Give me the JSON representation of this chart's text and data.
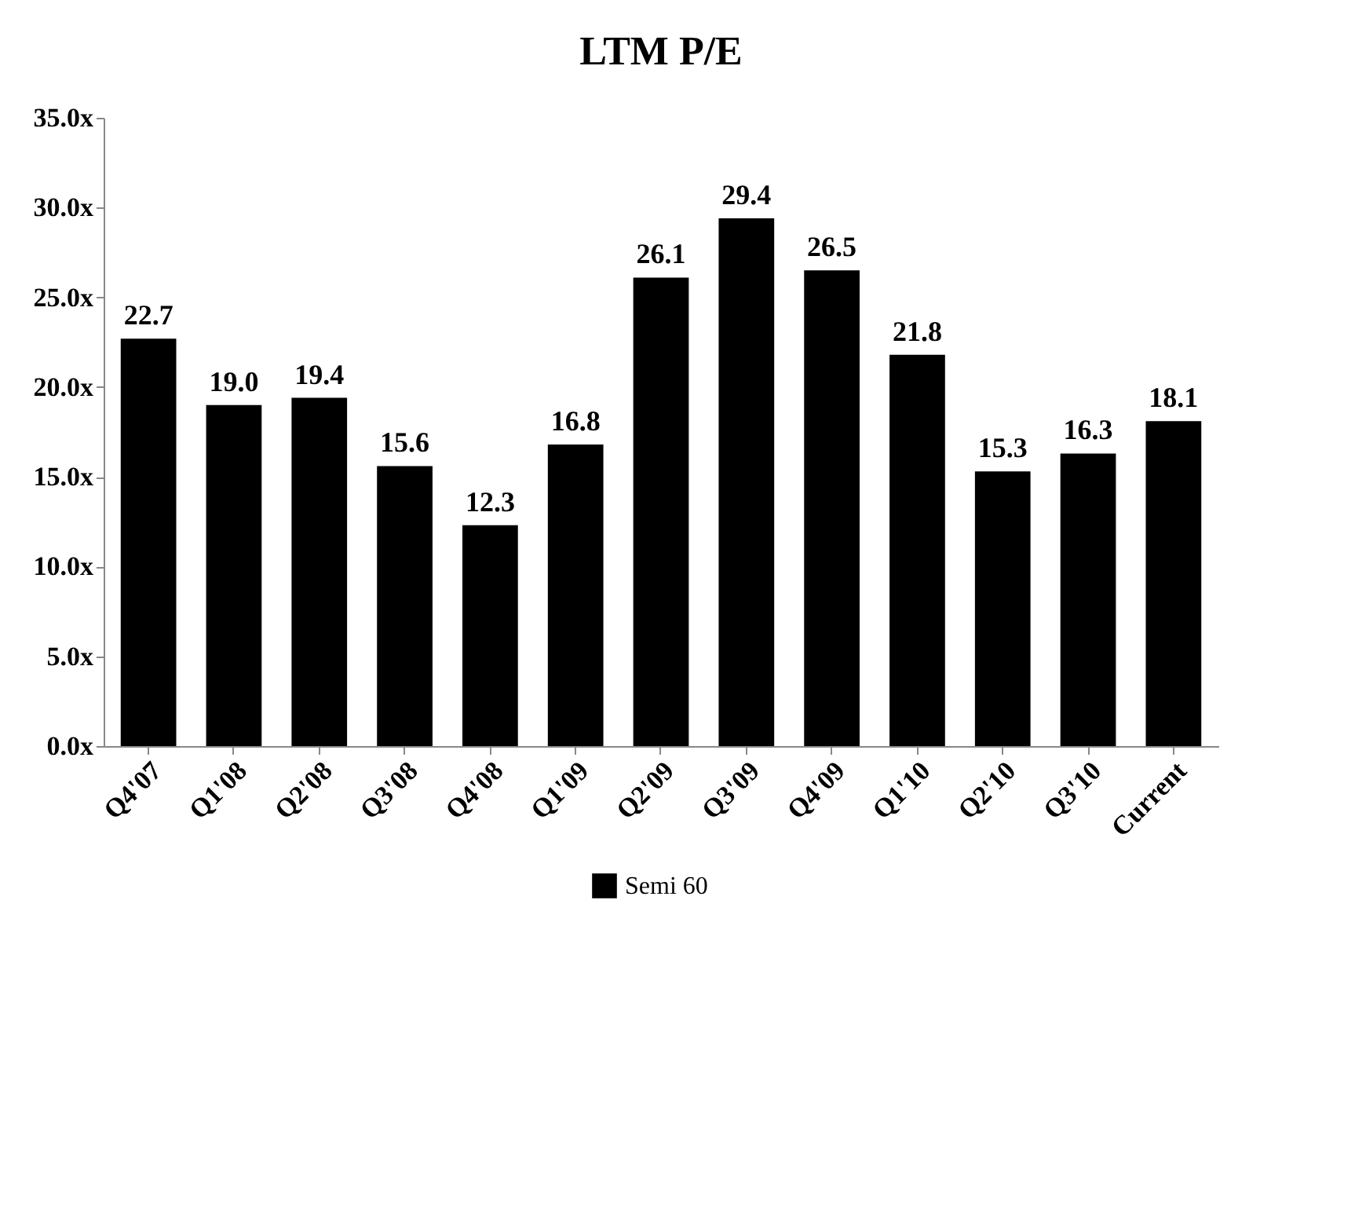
{
  "chart_data": {
    "type": "bar",
    "title": "LTM P/E",
    "categories": [
      "Q4'07",
      "Q1'08",
      "Q2'08",
      "Q3'08",
      "Q4'08",
      "Q1'09",
      "Q2'09",
      "Q3'09",
      "Q4'09",
      "Q1'10",
      "Q2'10",
      "Q3'10",
      "Current"
    ],
    "series": [
      {
        "name": "Semi 60",
        "color": "#000000",
        "values": [
          22.7,
          19.0,
          19.4,
          15.6,
          12.3,
          16.8,
          26.1,
          29.4,
          26.5,
          21.8,
          15.3,
          16.3,
          18.1
        ]
      }
    ],
    "ylim": [
      0,
      35
    ],
    "yticks": [
      {
        "value": 0,
        "label": "0.0x"
      },
      {
        "value": 5,
        "label": "5.0x"
      },
      {
        "value": 10,
        "label": "10.0x"
      },
      {
        "value": 15,
        "label": "15.0x"
      },
      {
        "value": 20,
        "label": "20.0x"
      },
      {
        "value": 25,
        "label": "25.0x"
      },
      {
        "value": 30,
        "label": "30.0x"
      },
      {
        "value": 35,
        "label": "35.0x"
      }
    ],
    "value_labels": [
      "22.7",
      "19.0",
      "19.4",
      "15.6",
      "12.3",
      "16.8",
      "26.1",
      "29.4",
      "26.5",
      "21.8",
      "15.3",
      "16.3",
      "18.1"
    ],
    "grid": false,
    "legend": "bottom"
  }
}
